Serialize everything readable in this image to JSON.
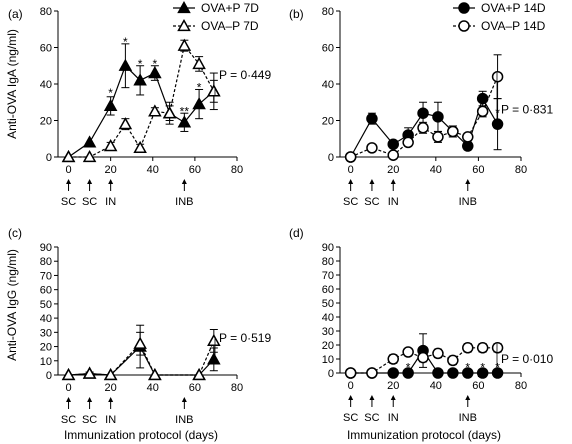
{
  "figure": {
    "ylabel_top": "Anti-OVA IgA (ng/ml)",
    "ylabel_bottom": "Anti-OVA IgG (ng/ml)",
    "xlabel": "Immunization protocol (days)"
  },
  "chart_data": [
    {
      "panel": "a",
      "label": "(a)",
      "type": "line",
      "xlim": [
        -5,
        80
      ],
      "ylim": [
        0,
        80
      ],
      "xticks": [
        0,
        20,
        40,
        60,
        80
      ],
      "yticks": [
        0,
        20,
        40,
        60,
        80
      ],
      "grid": false,
      "legend_position": "top-center",
      "series": [
        {
          "name": "OVA+P 7D",
          "marker": "triangle",
          "fill": "#000000",
          "dash": "solid",
          "x": [
            0,
            10,
            20,
            27,
            34,
            41,
            48,
            55,
            62,
            69
          ],
          "y": [
            0,
            8,
            28,
            50,
            42,
            46,
            24,
            19,
            29,
            36
          ],
          "err": [
            0,
            0,
            5,
            12,
            8,
            4,
            6,
            5,
            8,
            10
          ]
        },
        {
          "name": "OVA–P 7D",
          "marker": "triangle",
          "fill": "#ffffff",
          "dash": "dashed",
          "x": [
            0,
            10,
            20,
            27,
            34,
            41,
            48,
            55,
            62,
            69
          ],
          "y": [
            0,
            0,
            6,
            18,
            5,
            25,
            24,
            61,
            51,
            36
          ],
          "err": [
            0,
            0,
            2,
            3,
            2,
            2,
            4,
            3,
            4,
            6
          ]
        }
      ],
      "annotations": [
        {
          "text": "*",
          "x": 20,
          "y": 35
        },
        {
          "text": "*",
          "x": 27,
          "y": 63
        },
        {
          "text": "*",
          "x": 34,
          "y": 51
        },
        {
          "text": "*",
          "x": 41,
          "y": 51
        },
        {
          "text": "**",
          "x": 55,
          "y": 25
        },
        {
          "text": "*",
          "x": 62,
          "y": 38
        }
      ],
      "pvalue": "P = 0·449",
      "pvalue_y": 45,
      "arrows": [
        {
          "x": 0,
          "label": "SC"
        },
        {
          "x": 10,
          "label": "SC"
        },
        {
          "x": 20,
          "label": "IN"
        },
        {
          "x": 55,
          "label": "INB"
        }
      ]
    },
    {
      "panel": "b",
      "label": "(b)",
      "type": "line",
      "xlim": [
        -5,
        80
      ],
      "ylim": [
        0,
        80
      ],
      "xticks": [
        0,
        20,
        40,
        60,
        80
      ],
      "yticks": [
        0,
        20,
        40,
        60,
        80
      ],
      "grid": false,
      "legend_position": "top-center",
      "series": [
        {
          "name": "OVA+P 14D",
          "marker": "circle",
          "fill": "#000000",
          "dash": "solid",
          "x": [
            0,
            10,
            20,
            27,
            34,
            41,
            48,
            55,
            62,
            69
          ],
          "y": [
            0,
            21,
            7,
            12,
            24,
            22,
            14,
            6,
            32,
            18
          ],
          "err": [
            0,
            3,
            2,
            4,
            6,
            8,
            3,
            2,
            4,
            14
          ]
        },
        {
          "name": "OVA–P 14D",
          "marker": "circle",
          "fill": "#ffffff",
          "dash": "dashed",
          "x": [
            0,
            10,
            20,
            27,
            34,
            41,
            48,
            55,
            62,
            69
          ],
          "y": [
            0,
            5,
            1,
            8,
            16,
            11,
            14,
            11,
            25,
            44
          ],
          "err": [
            0,
            2,
            1,
            2,
            3,
            3,
            3,
            2,
            3,
            12
          ]
        }
      ],
      "annotations": [
        {
          "text": "*",
          "x": 69,
          "y": 24
        }
      ],
      "pvalue": "P = 0·831",
      "pvalue_y": 26,
      "arrows": [
        {
          "x": 0,
          "label": "SC"
        },
        {
          "x": 10,
          "label": "SC"
        },
        {
          "x": 20,
          "label": "IN"
        },
        {
          "x": 55,
          "label": "INB"
        }
      ]
    },
    {
      "panel": "c",
      "label": "(c)",
      "type": "line",
      "xlim": [
        -5,
        80
      ],
      "ylim": [
        0,
        90
      ],
      "xticks": [
        0,
        20,
        40,
        60,
        80
      ],
      "yticks": [
        0,
        10,
        20,
        30,
        40,
        50,
        60,
        70,
        80,
        90
      ],
      "grid": false,
      "series": [
        {
          "name": "OVA+P 7D",
          "marker": "triangle",
          "fill": "#000000",
          "dash": "solid",
          "x": [
            0,
            10,
            20,
            34,
            41,
            62,
            69
          ],
          "y": [
            0,
            1,
            0,
            20,
            0,
            0,
            11
          ],
          "err": [
            0,
            1,
            0,
            15,
            0,
            0,
            8
          ]
        },
        {
          "name": "OVA–P 7D",
          "marker": "triangle",
          "fill": "#ffffff",
          "dash": "dashed",
          "x": [
            0,
            10,
            20,
            34,
            41,
            62,
            69
          ],
          "y": [
            0,
            1,
            0,
            22,
            0,
            0,
            24
          ],
          "err": [
            0,
            1,
            0,
            8,
            0,
            0,
            8
          ]
        }
      ],
      "annotations": [],
      "pvalue": "P = 0·519",
      "pvalue_y": 26,
      "arrows": [
        {
          "x": 0,
          "label": "SC"
        },
        {
          "x": 10,
          "label": "SC"
        },
        {
          "x": 20,
          "label": "IN"
        },
        {
          "x": 55,
          "label": "INB"
        }
      ]
    },
    {
      "panel": "d",
      "label": "(d)",
      "type": "line",
      "xlim": [
        -5,
        80
      ],
      "ylim": [
        0,
        90
      ],
      "xticks": [
        0,
        20,
        40,
        60,
        80
      ],
      "yticks": [
        0,
        10,
        20,
        30,
        40,
        50,
        60,
        70,
        80,
        90
      ],
      "grid": false,
      "series": [
        {
          "name": "OVA+P 14D",
          "marker": "circle",
          "fill": "#000000",
          "dash": "solid",
          "x": [
            0,
            10,
            20,
            27,
            34,
            41,
            48,
            55,
            62,
            69
          ],
          "y": [
            0,
            0,
            0,
            0,
            16,
            0,
            0,
            0,
            0,
            0
          ],
          "err": [
            0,
            0,
            0,
            0,
            12,
            0,
            0,
            0,
            0,
            0
          ]
        },
        {
          "name": "OVA–P 14D",
          "marker": "circle",
          "fill": "#ffffff",
          "dash": "dashed",
          "x": [
            0,
            10,
            20,
            27,
            34,
            41,
            48,
            55,
            62,
            69
          ],
          "y": [
            0,
            0,
            10,
            15,
            11,
            14,
            9,
            18,
            18,
            18
          ],
          "err": [
            0,
            0,
            3,
            2,
            3,
            3,
            3,
            3,
            3,
            3
          ]
        }
      ],
      "annotations": [
        {
          "text": "*",
          "x": 27,
          "y": 4
        },
        {
          "text": "*",
          "x": 55,
          "y": 4
        },
        {
          "text": "*",
          "x": 62,
          "y": 4
        },
        {
          "text": "*",
          "x": 69,
          "y": 4
        }
      ],
      "pvalue": "P = 0·010",
      "pvalue_y": 10,
      "arrows": [
        {
          "x": 0,
          "label": "SC"
        },
        {
          "x": 10,
          "label": "SC"
        },
        {
          "x": 20,
          "label": "IN"
        },
        {
          "x": 55,
          "label": "INB"
        }
      ]
    }
  ]
}
